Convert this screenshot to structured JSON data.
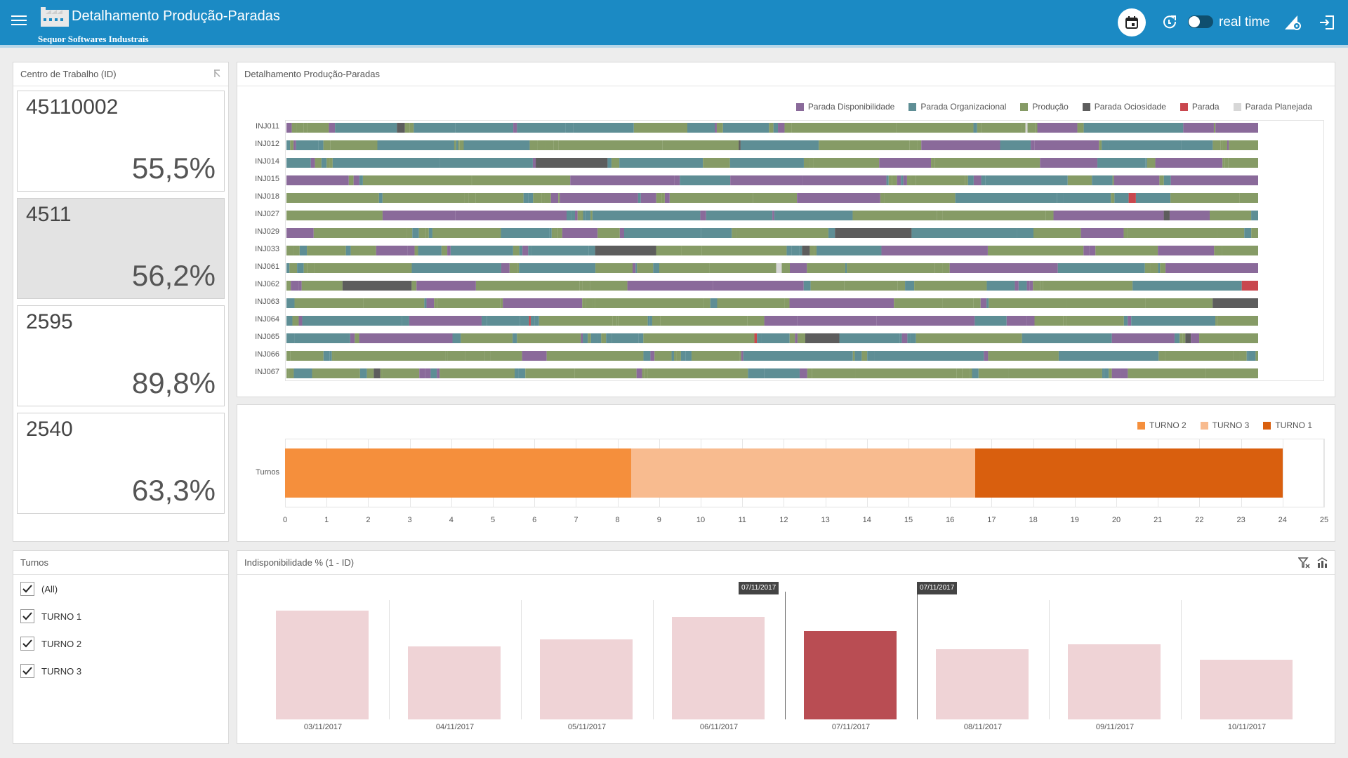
{
  "header": {
    "title": "Detalhamento Produção-Paradas",
    "subtitle": "Sequor Softwares Industrais",
    "realtime_label": "real time",
    "realtime_on": false
  },
  "work_centers": {
    "title": "Centro de Trabalho (ID)",
    "items": [
      {
        "id": "45110002",
        "pct": "55,5%",
        "selected": false
      },
      {
        "id": "4511",
        "pct": "56,2%",
        "selected": true
      },
      {
        "id": "2595",
        "pct": "89,8%",
        "selected": false
      },
      {
        "id": "2540",
        "pct": "63,3%",
        "selected": false
      }
    ]
  },
  "production": {
    "title": "Detalhamento Produção-Paradas",
    "legend": [
      {
        "label": "Parada Disponibilidade",
        "color": "#8a6a9a"
      },
      {
        "label": "Parada Organizacional",
        "color": "#5e8e95"
      },
      {
        "label": "Produção",
        "color": "#869b66"
      },
      {
        "label": "Parada Ociosidade",
        "color": "#5d5d5d"
      },
      {
        "label": "Parada",
        "color": "#c9474e"
      },
      {
        "label": "Parada Planejada",
        "color": "#d7d7d7"
      }
    ],
    "rows": [
      "INJ011",
      "INJ012",
      "INJ014",
      "INJ015",
      "INJ018",
      "INJ027",
      "INJ029",
      "INJ033",
      "INJ061",
      "INJ062",
      "INJ063",
      "INJ064",
      "INJ065",
      "INJ066",
      "INJ067"
    ]
  },
  "shifts_chart": {
    "legend": [
      {
        "label": "TURNO 2",
        "color": "#f58f3c"
      },
      {
        "label": "TURNO 3",
        "color": "#f8bb8f"
      },
      {
        "label": "TURNO 1",
        "color": "#d95f0e"
      }
    ],
    "row_label": "Turnos"
  },
  "chart_data": [
    {
      "type": "bar",
      "orientation": "horizontal-stacked",
      "series_name": "Turnos",
      "segments": [
        {
          "name": "TURNO 2",
          "start": 0,
          "end": 8.33
        },
        {
          "name": "TURNO 3",
          "start": 8.33,
          "end": 16.6
        },
        {
          "name": "TURNO 1",
          "start": 16.6,
          "end": 24
        }
      ],
      "xlim": [
        0,
        25
      ],
      "xticks": [
        0,
        1,
        2,
        3,
        4,
        5,
        6,
        7,
        8,
        9,
        10,
        11,
        12,
        13,
        14,
        15,
        16,
        17,
        18,
        19,
        20,
        21,
        22,
        23,
        24,
        25
      ]
    },
    {
      "type": "bar",
      "title": "Indisponibilidade % (1 - ID)",
      "categories": [
        "03/11/2017",
        "04/11/2017",
        "05/11/2017",
        "06/11/2017",
        "07/11/2017",
        "08/11/2017",
        "09/11/2017",
        "10/11/2017"
      ],
      "values": [
        0.91,
        0.61,
        0.67,
        0.86,
        0.74,
        0.59,
        0.63,
        0.5
      ],
      "highlighted": "07/11/2017",
      "ylim": [
        0,
        1
      ]
    }
  ],
  "turnos_filter": {
    "title": "Turnos",
    "options": [
      {
        "label": "(All)",
        "checked": true
      },
      {
        "label": "TURNO 1",
        "checked": true
      },
      {
        "label": "TURNO 2",
        "checked": true
      },
      {
        "label": "TURNO 3",
        "checked": true
      }
    ]
  },
  "unavailability": {
    "title": "Indisponibilidade % (1 - ID)",
    "tooltip_label": "07/11/2017",
    "bar_color": "#efd3d6",
    "highlight_color": "#b94d53"
  }
}
